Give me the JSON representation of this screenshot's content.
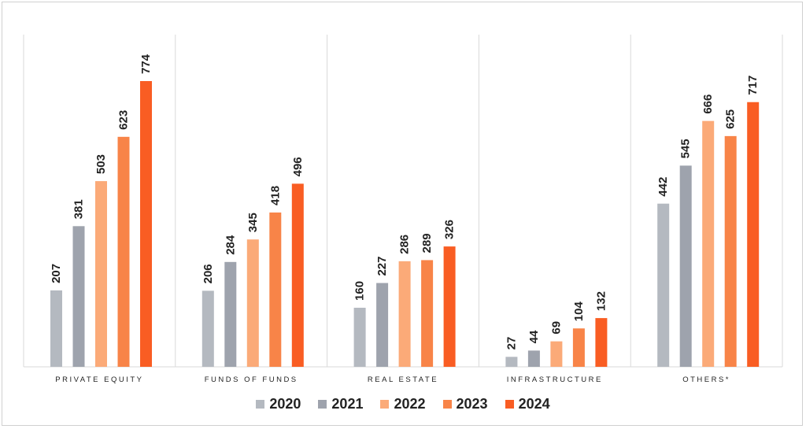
{
  "chart_data": {
    "type": "bar",
    "categories": [
      "PRIVATE EQUITY",
      "FUNDS OF FUNDS",
      "REAL ESTATE",
      "INFRASTRUCTURE",
      "OTHERS*"
    ],
    "series": [
      {
        "name": "2020",
        "color": "#b4b9c0",
        "values": [
          207,
          206,
          160,
          27,
          442
        ]
      },
      {
        "name": "2021",
        "color": "#9ea3ad",
        "values": [
          381,
          284,
          227,
          44,
          545
        ]
      },
      {
        "name": "2022",
        "color": "#fbaa78",
        "values": [
          503,
          345,
          286,
          69,
          666
        ]
      },
      {
        "name": "2023",
        "color": "#f88448",
        "values": [
          623,
          418,
          289,
          104,
          625
        ]
      },
      {
        "name": "2024",
        "color": "#f95d23",
        "values": [
          774,
          496,
          326,
          132,
          717
        ]
      }
    ],
    "ylim": [
      0,
      774
    ],
    "grid": false,
    "legend": "bottom-center",
    "data_labels": true
  }
}
